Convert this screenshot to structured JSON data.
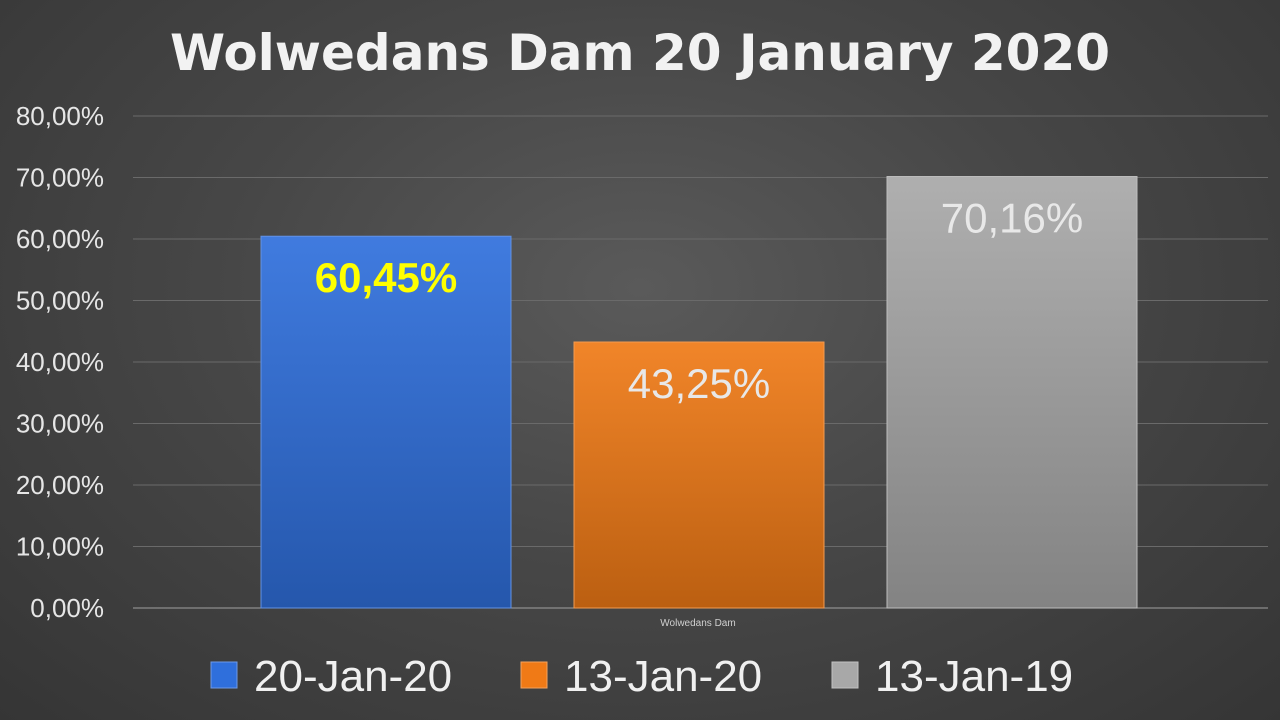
{
  "chart_data": {
    "type": "bar",
    "title": "Wolwedans Dam 20 January 2020",
    "categories": [
      "Wolwedans Dam"
    ],
    "ylim": [
      0,
      80
    ],
    "yticks": [
      "0,00%",
      "10,00%",
      "20,00%",
      "30,00%",
      "40,00%",
      "50,00%",
      "60,00%",
      "70,00%",
      "80,00%"
    ],
    "grid": true,
    "legend": "bottom",
    "series": [
      {
        "name": "20-Jan-20",
        "values": [
          60.45
        ],
        "label": "60,45%",
        "color": "#2f6fdc",
        "label_color": "#ffff00",
        "label_bold": true
      },
      {
        "name": "13-Jan-20",
        "values": [
          43.25
        ],
        "label": "43,25%",
        "color": "#f07a16",
        "label_color": "#e8e8e8",
        "label_bold": false
      },
      {
        "name": "13-Jan-19",
        "values": [
          70.16
        ],
        "label": "70,16%",
        "color": "#a8a8a8",
        "label_color": "#e8e8e8",
        "label_bold": false
      }
    ]
  }
}
